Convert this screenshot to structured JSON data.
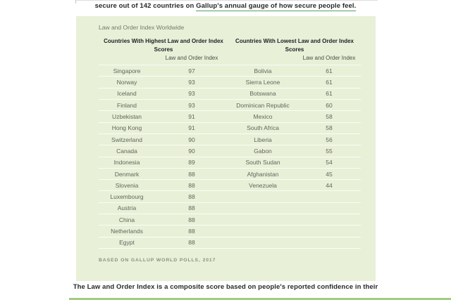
{
  "intro": {
    "prefix": "secure out of 142 countries on ",
    "link_text": "Gallup's annual gauge of how secure people feel."
  },
  "chart_data": {
    "type": "table",
    "title": "Law and Order Index Worldwide",
    "source_note": "BASED ON GALLUP WORLD POLLS, 2017",
    "tables": [
      {
        "header": "Countries With Highest Law and Order Index Scores",
        "value_label": "Law and Order Index",
        "countries": [
          "Singapore",
          "Norway",
          "Iceland",
          "Finland",
          "Uzbekistan",
          "Hong Kong",
          "Switzerland",
          "Canada",
          "Indonesia",
          "Denmark",
          "Slovenia",
          "Luxembourg",
          "Austria",
          "China",
          "Netherlands",
          "Egypt"
        ],
        "values": [
          97,
          93,
          93,
          93,
          91,
          91,
          90,
          90,
          89,
          88,
          88,
          88,
          88,
          88,
          88,
          88
        ]
      },
      {
        "header": "Countries With Lowest Law and Order Index Scores",
        "value_label": "Law and Order Index",
        "countries": [
          "Bolivia",
          "Sierra Leone",
          "Botswana",
          "Dominican Republic",
          "Mexico",
          "South Africa",
          "Liberia",
          "Gabon",
          "South Sudan",
          "Afghanistan",
          "Venezuela"
        ],
        "values": [
          61,
          61,
          61,
          60,
          58,
          58,
          56,
          55,
          54,
          45,
          44
        ]
      }
    ]
  },
  "outro": {
    "text": "The Law and Order Index is a composite score based on people's reported confidence in their"
  },
  "colors": {
    "figure_bg": "#e8f0d8",
    "link_underline": "#55a15d",
    "bottom_rule": "#a3cb81",
    "separator": "#fbfdf4"
  }
}
